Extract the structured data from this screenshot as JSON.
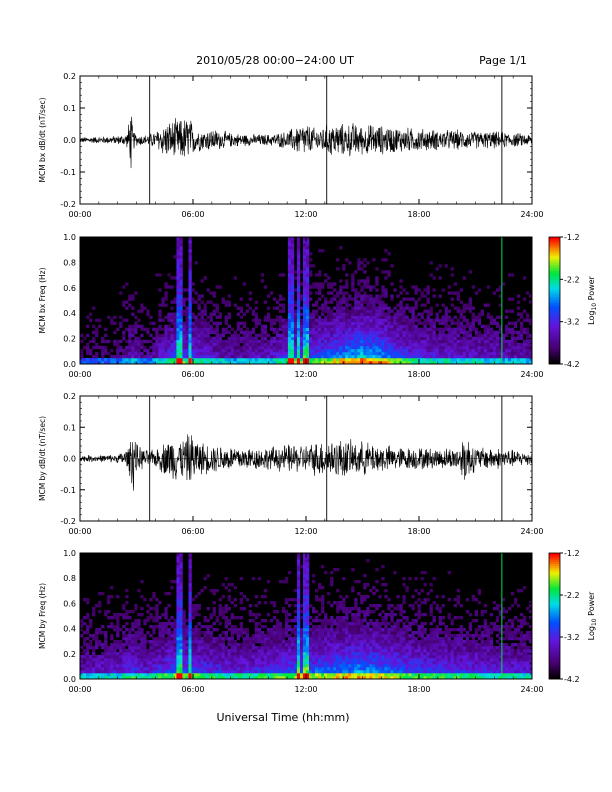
{
  "header": {
    "date_range": "2010/05/28  00:00−24:00 UT",
    "page": "Page 1/1"
  },
  "x_axis_label": "Universal Time (hh:mm)",
  "x_ticks": [
    "00:00",
    "06:00",
    "12:00",
    "18:00",
    "24:00"
  ],
  "colorbar": {
    "ticks": [
      "-1.2",
      "-2.2",
      "-3.2",
      "-4.2"
    ],
    "label_main": "Log",
    "label_sub": "10",
    "label_tail": " Power"
  },
  "chart_data": [
    {
      "type": "line",
      "title": "",
      "ylabel": "MCM bx dB/dt (nT/sec)",
      "xlabel": "",
      "xlim": [
        0,
        24
      ],
      "ylim": [
        -0.2,
        0.2
      ],
      "y_ticks": [
        "0.2",
        "0.1",
        "0.0",
        "-0.1",
        "-0.2"
      ],
      "y_tick_values": [
        0.2,
        0.1,
        0.0,
        -0.1,
        -0.2
      ],
      "markers_hours": [
        3.7,
        13.1,
        22.4
      ],
      "envelope": {
        "hours": [
          0,
          1,
          2,
          2.5,
          2.7,
          2.8,
          3,
          3.5,
          4,
          4.5,
          5,
          5.5,
          5.8,
          6,
          6.5,
          7,
          8,
          9,
          10,
          11,
          11.5,
          11.9,
          12.5,
          13,
          13.5,
          14,
          14.5,
          15,
          15.5,
          16,
          17,
          18,
          19,
          20,
          21,
          22,
          23,
          24
        ],
        "amplitude": [
          0.01,
          0.012,
          0.015,
          0.025,
          0.12,
          0.04,
          0.02,
          0.018,
          0.03,
          0.06,
          0.07,
          0.075,
          0.09,
          0.05,
          0.035,
          0.04,
          0.025,
          0.02,
          0.02,
          0.03,
          0.05,
          0.06,
          0.04,
          0.05,
          0.06,
          0.055,
          0.06,
          0.05,
          0.055,
          0.05,
          0.045,
          0.04,
          0.035,
          0.035,
          0.03,
          0.03,
          0.025,
          0.02
        ]
      }
    },
    {
      "type": "heatmap",
      "title": "",
      "ylabel": "MCM bx Freq (Hz)",
      "xlabel": "",
      "xlim": [
        0,
        24
      ],
      "ylim": [
        0.0,
        1.0
      ],
      "y_ticks": [
        "1.0",
        "0.8",
        "0.6",
        "0.4",
        "0.2",
        "0.0"
      ],
      "y_tick_values": [
        1.0,
        0.8,
        0.6,
        0.4,
        0.2,
        0.0
      ],
      "zlim": [
        -4.2,
        -1.2
      ],
      "colorbar_label": "Log10 Power",
      "bright_bands_hours": [
        5.3,
        5.8,
        11.2,
        11.6,
        12.0
      ],
      "activity_profile": {
        "hours": [
          0,
          2,
          2.8,
          3.5,
          5,
          6,
          8,
          10,
          11.5,
          13,
          14,
          15,
          16,
          17,
          18,
          20,
          22,
          24
        ],
        "level": [
          0.15,
          0.2,
          0.35,
          0.2,
          0.55,
          0.5,
          0.3,
          0.35,
          0.55,
          0.6,
          0.75,
          0.85,
          0.75,
          0.55,
          0.45,
          0.4,
          0.35,
          0.3
        ]
      },
      "green_line_hour": 22.4
    },
    {
      "type": "line",
      "title": "",
      "ylabel": "MCM by dB/dt (nT/sec)",
      "xlabel": "",
      "xlim": [
        0,
        24
      ],
      "ylim": [
        -0.2,
        0.2
      ],
      "y_ticks": [
        "0.2",
        "0.1",
        "0.0",
        "-0.1",
        "-0.2"
      ],
      "y_tick_values": [
        0.2,
        0.1,
        0.0,
        -0.1,
        -0.2
      ],
      "markers_hours": [
        3.7,
        13.1,
        22.4
      ],
      "envelope": {
        "hours": [
          0,
          1,
          2,
          2.6,
          2.8,
          3,
          3.5,
          4,
          4.5,
          5,
          5.5,
          5.8,
          6,
          6.3,
          7,
          8,
          9,
          10,
          11,
          12,
          12.5,
          13,
          14,
          14.5,
          15,
          16,
          17,
          18,
          19,
          20,
          20.5,
          21,
          22,
          23,
          24
        ],
        "amplitude": [
          0.012,
          0.012,
          0.015,
          0.04,
          0.14,
          0.05,
          0.03,
          0.03,
          0.06,
          0.08,
          0.07,
          0.09,
          0.09,
          0.06,
          0.05,
          0.045,
          0.04,
          0.04,
          0.05,
          0.05,
          0.06,
          0.065,
          0.07,
          0.06,
          0.06,
          0.05,
          0.04,
          0.04,
          0.035,
          0.04,
          0.09,
          0.04,
          0.04,
          0.03,
          0.025
        ]
      }
    },
    {
      "type": "heatmap",
      "title": "",
      "ylabel": "MCM by Freq (Hz)",
      "xlabel": "",
      "xlim": [
        0,
        24
      ],
      "ylim": [
        0.0,
        1.0
      ],
      "y_ticks": [
        "1.0",
        "0.8",
        "0.6",
        "0.4",
        "0.2",
        "0.0"
      ],
      "y_tick_values": [
        1.0,
        0.8,
        0.6,
        0.4,
        0.2,
        0.0
      ],
      "zlim": [
        -4.2,
        -1.2
      ],
      "colorbar_label": "Log10 Power",
      "bright_bands_hours": [
        5.3,
        5.8,
        11.6,
        12.0
      ],
      "activity_profile": {
        "hours": [
          0,
          2,
          2.8,
          3.5,
          5,
          6,
          8,
          10,
          11.5,
          13,
          14,
          15,
          16,
          17,
          18,
          20,
          22,
          24
        ],
        "level": [
          0.35,
          0.4,
          0.5,
          0.4,
          0.6,
          0.55,
          0.45,
          0.5,
          0.6,
          0.65,
          0.7,
          0.75,
          0.7,
          0.6,
          0.55,
          0.5,
          0.45,
          0.4
        ]
      },
      "green_line_hour": 22.4
    }
  ]
}
